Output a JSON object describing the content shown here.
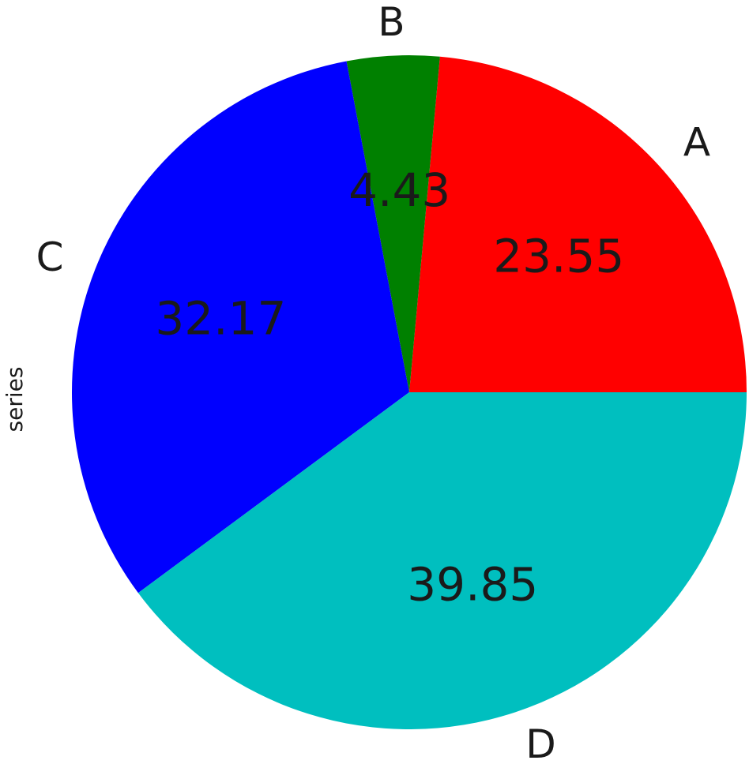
{
  "chart_data": {
    "type": "pie",
    "ylabel": "series",
    "categories": [
      "A",
      "B",
      "C",
      "D"
    ],
    "values": [
      23.55,
      4.43,
      32.17,
      39.85
    ],
    "colors": [
      "#ff0000",
      "#008000",
      "#0000ff",
      "#00bfbf"
    ],
    "start_angle_deg": 0,
    "direction": "counterclockwise",
    "value_labels_shown": true
  }
}
